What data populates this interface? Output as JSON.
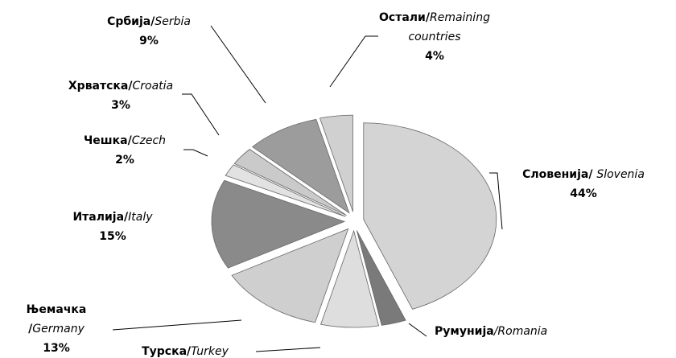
{
  "chart_data": {
    "type": "pie",
    "categories": [
      "Словенија/ ",
      "Румунија",
      "Турска/",
      "Њемачка /",
      "Италија/",
      "Чешка/",
      "Хрватска/",
      "Србија/",
      "Остали/"
    ],
    "categories_en": [
      "Slovenia",
      "/Romania",
      "Turkey",
      "Germany",
      "Italy",
      "Czech",
      "Croatia",
      "Serbia",
      "Remaining countries"
    ],
    "values": [
      44,
      3,
      7,
      13,
      15,
      2,
      3,
      9,
      4
    ],
    "value_labels": [
      "44%",
      null,
      null,
      "13%",
      "15%",
      "2%",
      "3%",
      "9%",
      "4%"
    ],
    "colors": [
      "#d4d4d4",
      "#7a7a7a",
      "#dedede",
      "#cfcfcf",
      "#8a8a8a",
      "#e2e2e2",
      "#cacaca",
      "#9c9c9c",
      "#d0d0d0"
    ]
  }
}
